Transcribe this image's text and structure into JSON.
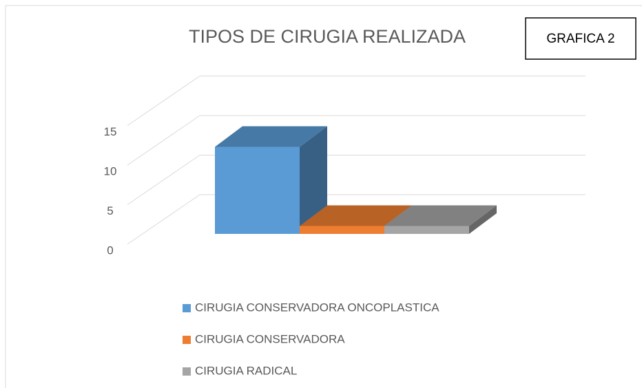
{
  "chart_data": {
    "type": "bar3d",
    "title": "TIPOS DE CIRUGIA REALIZADA",
    "annotation": "GRAFICA  2",
    "categories": [
      "CIRUGIA  CONSERVADORA ONCOPLASTICA",
      "CIRUGIA CONSERVADORA",
      "CIRUGIA RADICAL"
    ],
    "values": [
      11,
      1,
      1
    ],
    "colors": [
      "#5b9bd5",
      "#ed7d31",
      "#a5a5a5"
    ],
    "ylim": [
      0,
      15
    ],
    "yticks": [
      0,
      5,
      10,
      15
    ],
    "grid": true,
    "legend": "bottom"
  }
}
